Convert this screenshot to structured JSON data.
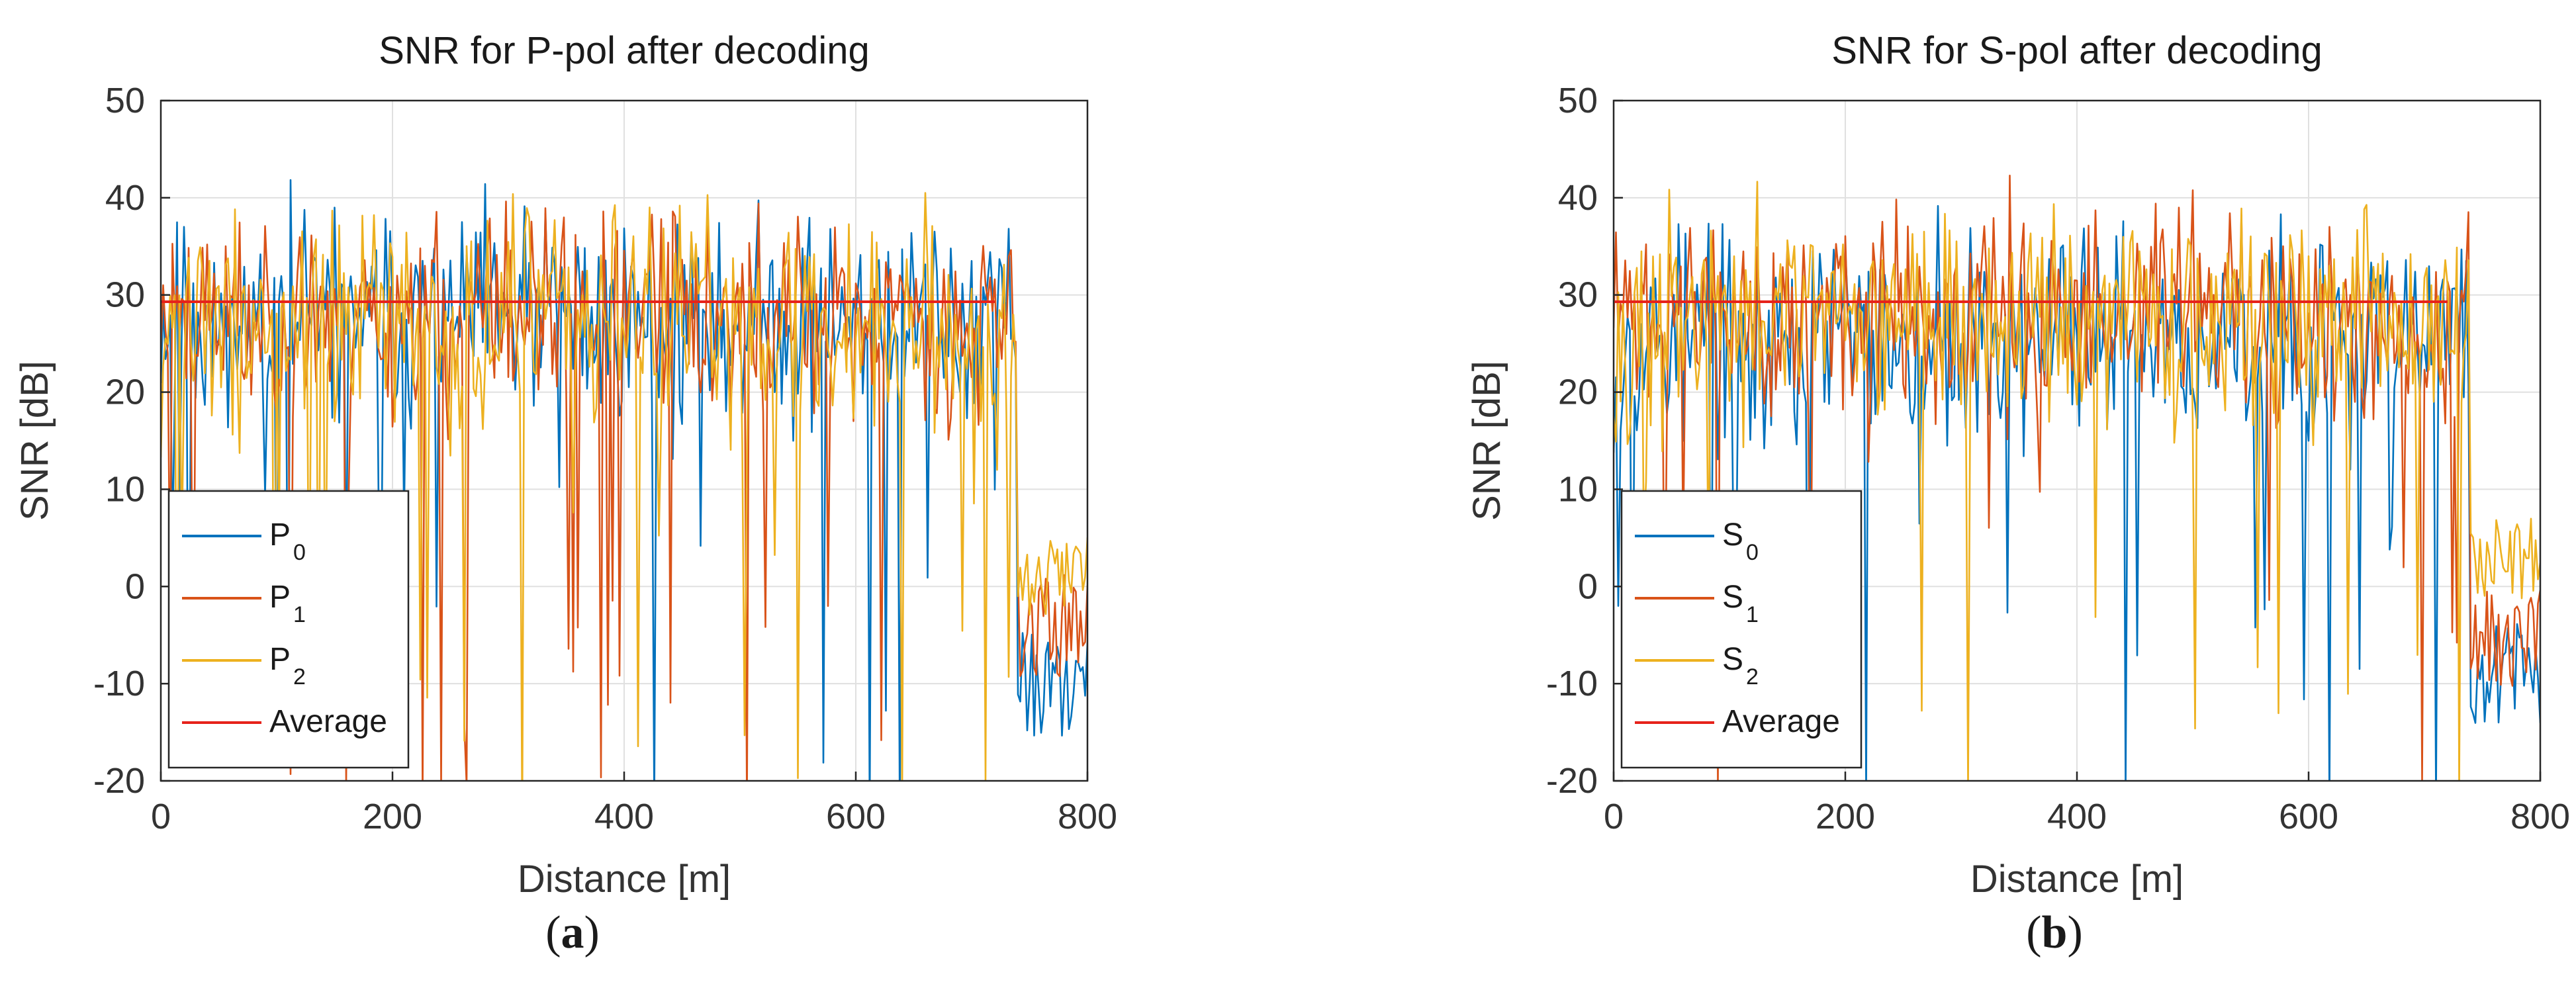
{
  "chart_data": [
    {
      "type": "line",
      "panel": "(a)",
      "caption_letter": "a",
      "title": "SNR for P-pol after decoding",
      "xlabel": "Distance [m]",
      "ylabel": "SNR [dB]",
      "xlim": [
        0,
        800
      ],
      "ylim": [
        -20,
        50
      ],
      "xticks": [
        0,
        200,
        400,
        600,
        800
      ],
      "yticks": [
        -20,
        -10,
        0,
        10,
        20,
        30,
        40,
        50
      ],
      "grid": true,
      "legend_position": "bottom-left",
      "cutoff_m": 740,
      "series": [
        {
          "name": "P0",
          "base": "P",
          "sub": "0",
          "color": "#0072BD",
          "seed": 11,
          "mean": 27.5,
          "spread": 6.5,
          "dipChance": 0.055,
          "tailMean": -10,
          "tailSpread": 5
        },
        {
          "name": "P1",
          "base": "P",
          "sub": "1",
          "color": "#D95319",
          "seed": 23,
          "mean": 28,
          "spread": 6.5,
          "dipChance": 0.05,
          "tailMean": -4,
          "tailSpread": 5
        },
        {
          "name": "P2",
          "base": "P",
          "sub": "2",
          "color": "#EDB120",
          "seed": 37,
          "mean": 27,
          "spread": 7,
          "dipChance": 0.06,
          "tailMean": 1,
          "tailSpread": 4
        },
        {
          "name": "Average",
          "base": "Average",
          "sub": "",
          "color": "#E6221B",
          "constant": 29.3,
          "range": [
            0,
            720
          ]
        }
      ]
    },
    {
      "type": "line",
      "panel": "(b)",
      "caption_letter": "b",
      "title": "SNR for S-pol after decoding",
      "xlabel": "Distance [m]",
      "ylabel": "SNR [dB]",
      "xlim": [
        0,
        800
      ],
      "ylim": [
        -20,
        50
      ],
      "xticks": [
        0,
        200,
        400,
        600,
        800
      ],
      "yticks": [
        -20,
        -10,
        0,
        10,
        20,
        30,
        40,
        50
      ],
      "grid": true,
      "legend_position": "bottom-left",
      "cutoff_m": 740,
      "series": [
        {
          "name": "S0",
          "base": "S",
          "sub": "0",
          "color": "#0072BD",
          "seed": 53,
          "mean": 25.5,
          "spread": 7,
          "dipChance": 0.04,
          "tailMean": -9,
          "tailSpread": 5
        },
        {
          "name": "S1",
          "base": "S",
          "sub": "1",
          "color": "#D95319",
          "seed": 71,
          "mean": 27.5,
          "spread": 6.5,
          "dipChance": 0.03,
          "tailMean": -5,
          "tailSpread": 5
        },
        {
          "name": "S2",
          "base": "S",
          "sub": "2",
          "color": "#EDB120",
          "seed": 97,
          "mean": 27,
          "spread": 6.5,
          "dipChance": 0.045,
          "tailMean": 3,
          "tailSpread": 4
        },
        {
          "name": "Average",
          "base": "Average",
          "sub": "",
          "color": "#E6221B",
          "constant": 29.3,
          "range": [
            0,
            720
          ]
        }
      ]
    }
  ]
}
